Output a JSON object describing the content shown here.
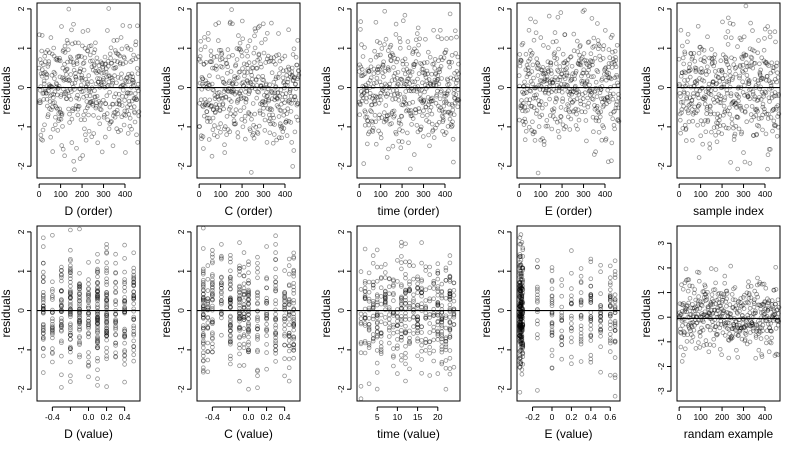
{
  "figure": {
    "background": "#ffffff",
    "point_color": "#000000"
  },
  "chart_data": [
    {
      "type": "scatter",
      "xlabel": "D (order)",
      "ylabel": "residuals",
      "xlim": [
        -10,
        470
      ],
      "ylim": [
        -2.3,
        2.15
      ],
      "xticks": [
        0,
        100,
        200,
        300,
        400
      ],
      "yticks": [
        -2,
        -1,
        0,
        1,
        2
      ],
      "hline": 0,
      "gen": {
        "mode": "index",
        "n": 480
      },
      "summary": "residuals vs observation order; roughly uniform scatter between -2 and 2"
    },
    {
      "type": "scatter",
      "xlabel": "C (order)",
      "ylabel": "residuals",
      "xlim": [
        -10,
        470
      ],
      "ylim": [
        -2.3,
        2.15
      ],
      "xticks": [
        0,
        100,
        200,
        300,
        400
      ],
      "yticks": [
        -2,
        -1,
        0,
        1,
        2
      ],
      "hline": 0,
      "gen": {
        "mode": "index",
        "n": 480
      }
    },
    {
      "type": "scatter",
      "xlabel": "time (order)",
      "ylabel": "residuals",
      "xlim": [
        -10,
        470
      ],
      "ylim": [
        -2.3,
        2.15
      ],
      "xticks": [
        0,
        100,
        200,
        300,
        400
      ],
      "yticks": [
        -2,
        -1,
        0,
        1,
        2
      ],
      "hline": 0,
      "gen": {
        "mode": "index",
        "n": 480
      }
    },
    {
      "type": "scatter",
      "xlabel": "E (order)",
      "ylabel": "residuals",
      "xlim": [
        -10,
        470
      ],
      "ylim": [
        -2.3,
        2.15
      ],
      "xticks": [
        0,
        100,
        200,
        300,
        400
      ],
      "yticks": [
        -2,
        -1,
        0,
        1,
        2
      ],
      "hline": 0,
      "gen": {
        "mode": "index",
        "n": 480
      }
    },
    {
      "type": "scatter",
      "xlabel": "sample index",
      "ylabel": "residuals",
      "xlim": [
        -10,
        470
      ],
      "ylim": [
        -2.3,
        2.15
      ],
      "xticks": [
        0,
        100,
        200,
        300,
        400
      ],
      "yticks": [
        -2,
        -1,
        0,
        1,
        2
      ],
      "hline": 0,
      "gen": {
        "mode": "index",
        "n": 480
      }
    },
    {
      "type": "scatter",
      "xlabel": "D (value)",
      "ylabel": "residuals",
      "xlim": [
        -0.57,
        0.57
      ],
      "ylim": [
        -2.3,
        2.15
      ],
      "xticks": [
        -0.4,
        -0.2,
        0.0,
        0.2,
        0.4
      ],
      "tick_labels": [
        "-0.4",
        "",
        "0.0",
        "0.2",
        "0.4"
      ],
      "yticks": [
        -2,
        -1,
        0,
        1,
        2
      ],
      "hline": 0,
      "gen": {
        "mode": "discrete",
        "n": 480,
        "levels": [
          -0.5,
          -0.4,
          -0.3,
          -0.2,
          -0.1,
          0.0,
          0.1,
          0.2,
          0.3,
          0.4,
          0.5
        ],
        "weights": [
          1,
          1,
          1,
          1,
          1,
          1,
          1.6,
          1.2,
          1,
          1,
          1
        ]
      }
    },
    {
      "type": "scatter",
      "xlabel": "C (value)",
      "ylabel": "residuals",
      "xlim": [
        -0.57,
        0.57
      ],
      "ylim": [
        -2.3,
        2.15
      ],
      "xticks": [
        -0.4,
        -0.2,
        0.0,
        0.2,
        0.4
      ],
      "tick_labels": [
        "-0.4",
        "",
        "0.0",
        "0.2",
        "0.4"
      ],
      "yticks": [
        -2,
        -1,
        0,
        1,
        2
      ],
      "hline": 0,
      "gen": {
        "mode": "discrete",
        "n": 480,
        "levels": [
          -0.5,
          -0.45,
          -0.4,
          -0.3,
          -0.2,
          -0.1,
          -0.05,
          0.0,
          0.1,
          0.2,
          0.3,
          0.4,
          0.45,
          0.5
        ],
        "weights": [
          1.6,
          1,
          1.3,
          1,
          1.6,
          1,
          1,
          1.3,
          1,
          1,
          1,
          1,
          1,
          1.4
        ]
      }
    },
    {
      "type": "scatter",
      "xlabel": "time (value)",
      "ylabel": "residuals",
      "xlim": [
        0,
        25.5
      ],
      "ylim": [
        -2.3,
        2.15
      ],
      "xticks": [
        5,
        10,
        15,
        20
      ],
      "yticks": [
        -2,
        -1,
        0,
        1,
        2
      ],
      "hline": 0,
      "gen": {
        "mode": "discrete",
        "n": 480,
        "levels": [
          1,
          2,
          3,
          4,
          5,
          6,
          7,
          8,
          9,
          10,
          11,
          12,
          13,
          14,
          15,
          16,
          17,
          18,
          19,
          20,
          21,
          22,
          23,
          24
        ],
        "weights": [
          1,
          1,
          1,
          1,
          1,
          1,
          1,
          1.3,
          1,
          1,
          1.5,
          1.6,
          1.2,
          1,
          1,
          1,
          1,
          1,
          1,
          1,
          1.1,
          1.2,
          1.3,
          1.4
        ]
      }
    },
    {
      "type": "scatter",
      "xlabel": "E (value)",
      "ylabel": "residuals",
      "xlim": [
        -0.36,
        0.7
      ],
      "ylim": [
        -2.3,
        2.15
      ],
      "xticks": [
        -0.2,
        0.0,
        0.2,
        0.4,
        0.6
      ],
      "yticks": [
        -2,
        -1,
        0,
        1,
        2
      ],
      "hline": 0,
      "gen": {
        "mode": "discrete",
        "n": 480,
        "levels": [
          -0.33,
          -0.32,
          -0.31,
          -0.3,
          -0.15,
          0.0,
          0.1,
          0.2,
          0.3,
          0.4,
          0.5,
          0.6,
          0.65
        ],
        "weights": [
          4,
          3,
          2,
          1.5,
          1,
          1,
          0.7,
          0.7,
          0.8,
          1.5,
          1,
          1.2,
          1
        ]
      }
    },
    {
      "type": "scatter",
      "xlabel": "randam example",
      "ylabel": "residuals",
      "xlim": [
        -10,
        470
      ],
      "ylim": [
        -3.4,
        3.7
      ],
      "xticks": [
        0,
        100,
        200,
        300,
        400
      ],
      "yticks": [
        -3,
        -2,
        -1,
        0,
        1,
        2,
        3
      ],
      "hline": -0.05,
      "gen": {
        "mode": "index",
        "n": 480
      }
    }
  ]
}
